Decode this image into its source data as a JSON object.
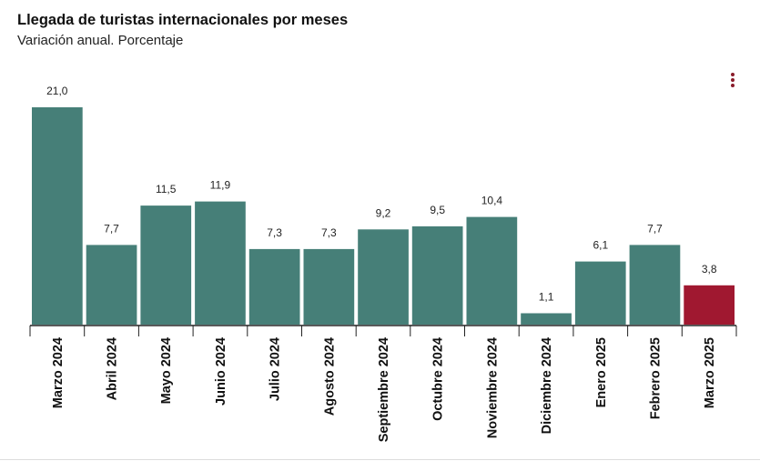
{
  "header": {
    "title": "Llegada de turistas internacionales por meses",
    "subtitle": "Variación anual. Porcentaje"
  },
  "colors": {
    "bar": "#467f78",
    "highlight": "#a01830",
    "axis": "#222222"
  },
  "chart_data": {
    "type": "bar",
    "title": "Llegada de turistas internacionales por meses",
    "subtitle": "Variación anual. Porcentaje",
    "categories": [
      "Marzo 2024",
      "Abril 2024",
      "Mayo 2024",
      "Junio 2024",
      "Julio 2024",
      "Agosto 2024",
      "Septiembre 2024",
      "Octubre 2024",
      "Noviembre 2024",
      "Diciembre 2024",
      "Enero 2025",
      "Febrero 2025",
      "Marzo 2025"
    ],
    "values": [
      21.0,
      7.7,
      11.5,
      11.9,
      7.3,
      7.3,
      9.2,
      9.5,
      10.4,
      1.1,
      6.1,
      7.7,
      3.8
    ],
    "data_labels": [
      "21,0",
      "7,7",
      "11,5",
      "11,9",
      "7,3",
      "7,3",
      "9,2",
      "9,5",
      "10,4",
      "1,1",
      "6,1",
      "7,7",
      "3,8"
    ],
    "highlight_index": 12,
    "ylim": [
      0,
      21
    ],
    "grid": false,
    "legend": "none"
  }
}
